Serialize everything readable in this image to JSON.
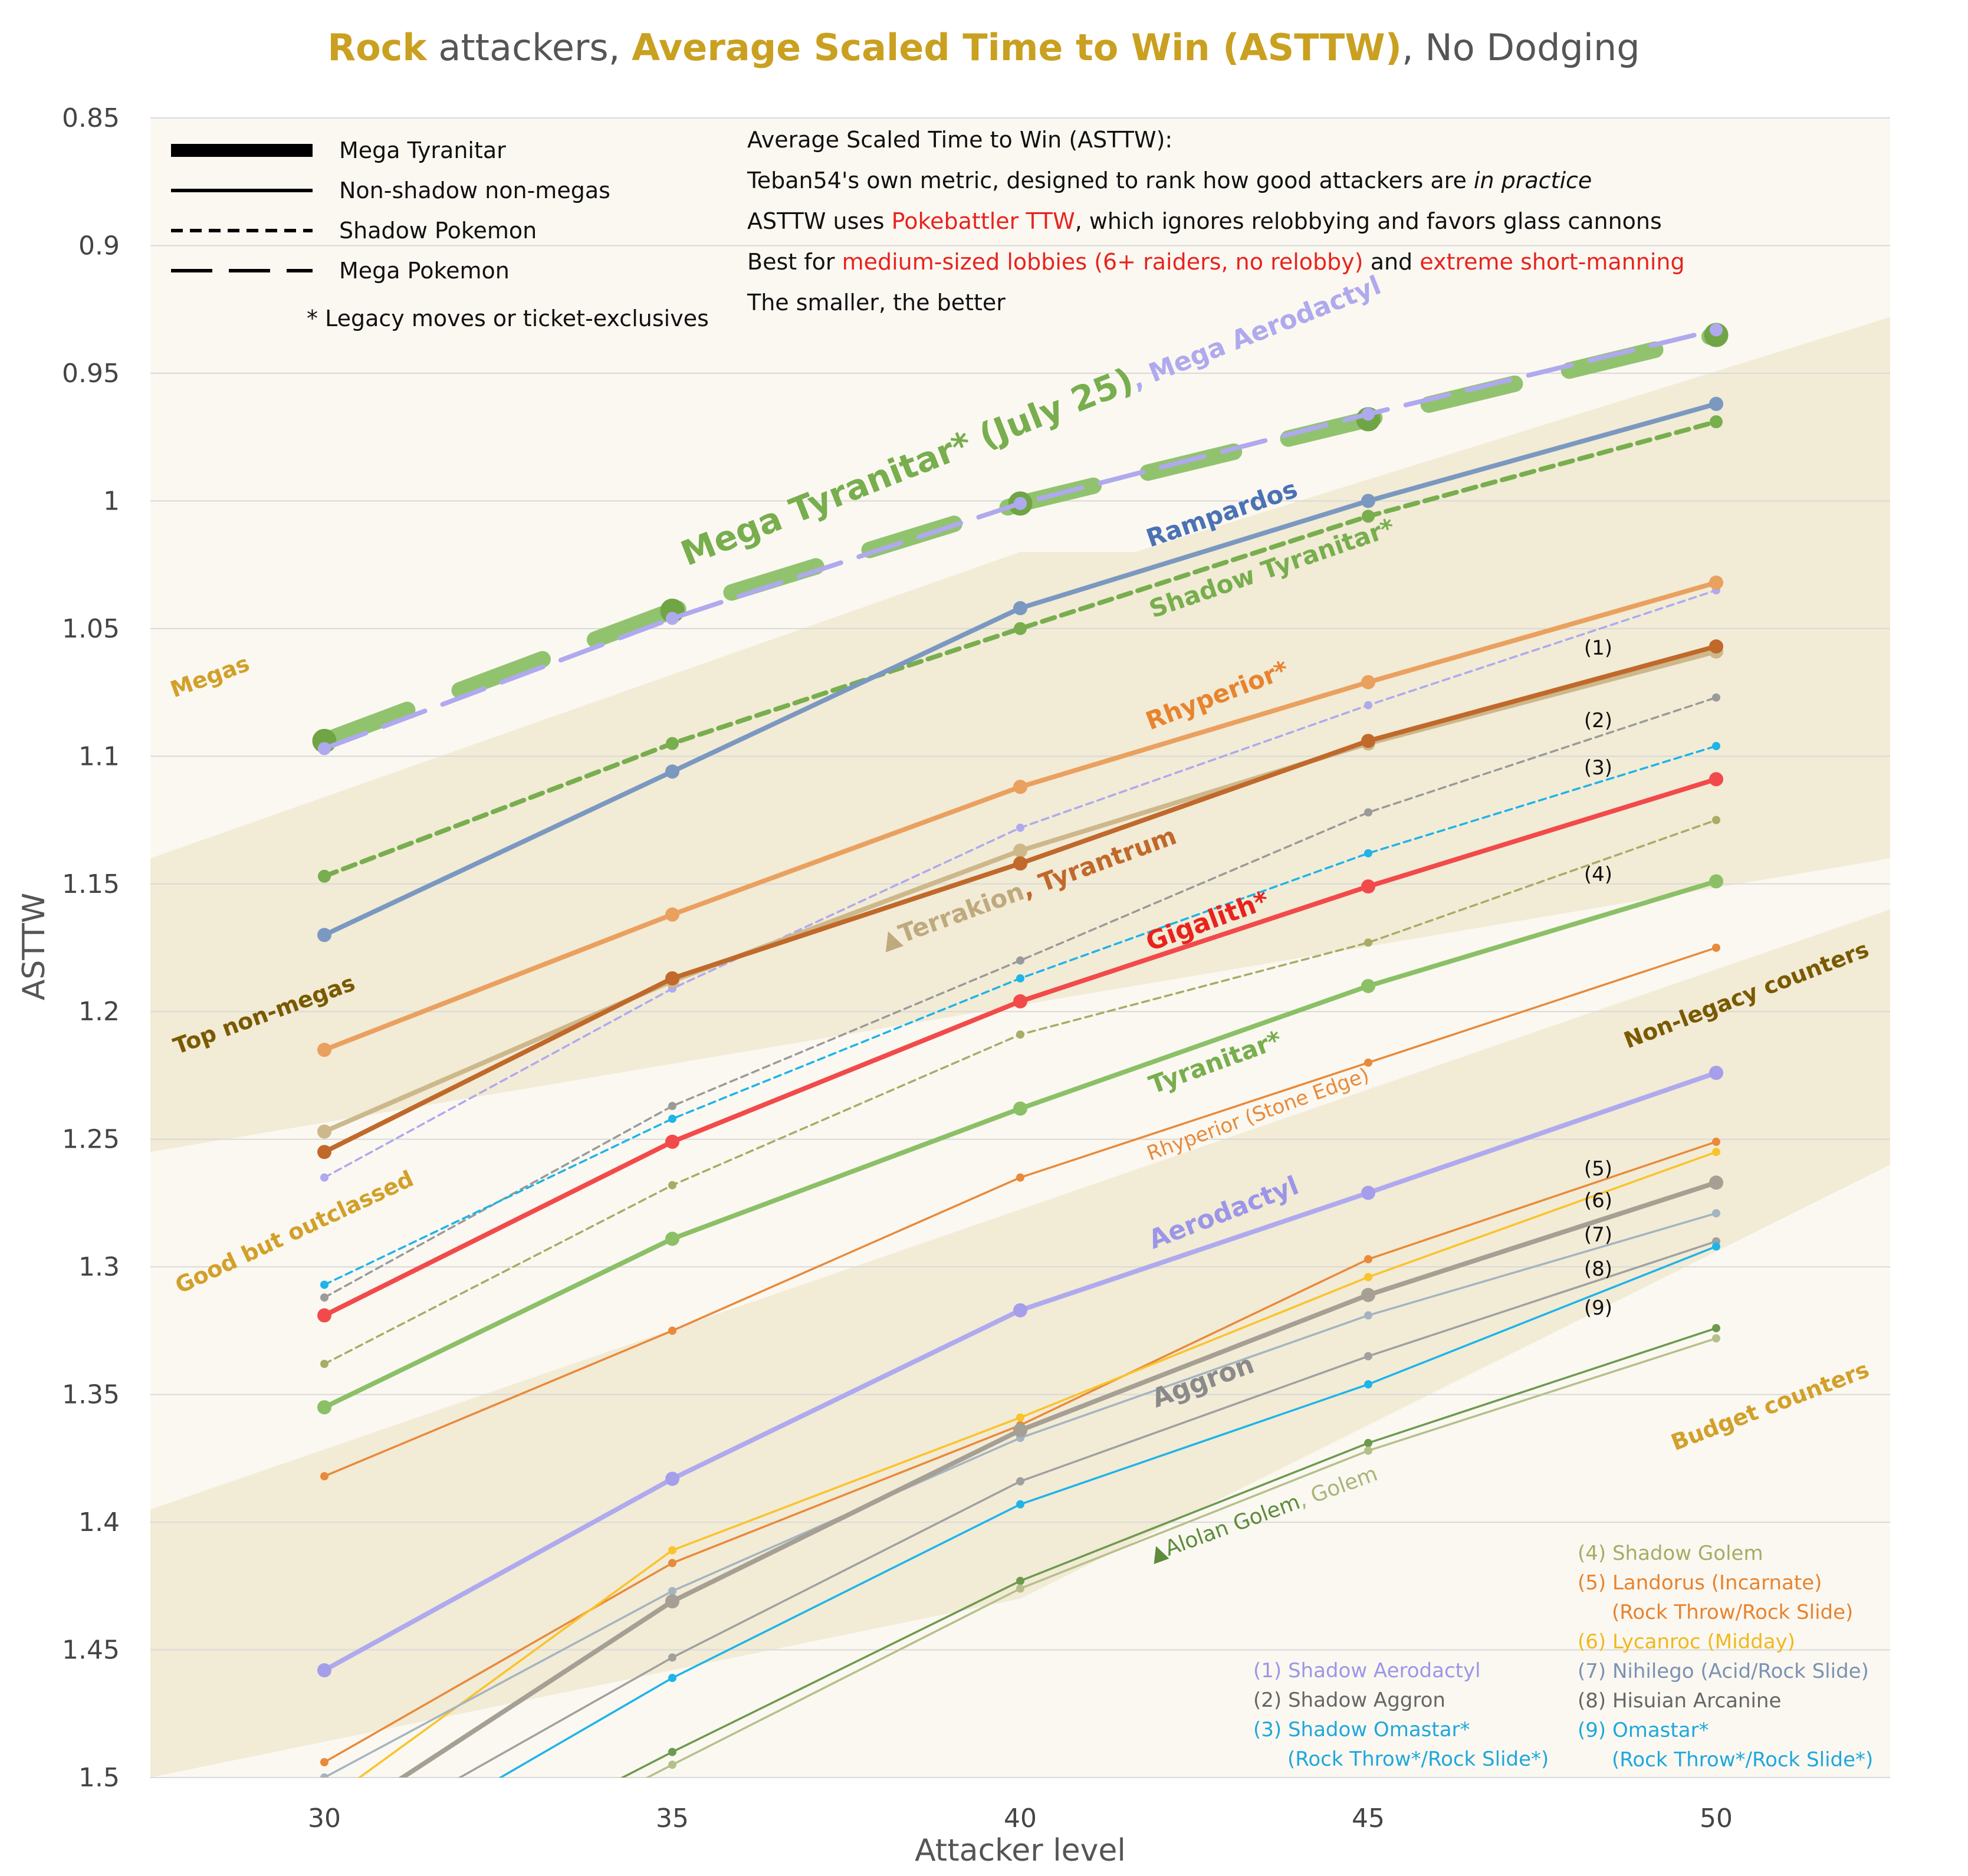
{
  "chart_data": {
    "type": "line",
    "title_parts": [
      {
        "text": "Rock",
        "color": "#C9A020",
        "bold": true
      },
      {
        "text": " attackers, ",
        "color": "#555555",
        "bold": false
      },
      {
        "text": "Average Scaled Time to Win (ASTTW)",
        "color": "#C9A020",
        "bold": true
      },
      {
        "text": ", No Dodging",
        "color": "#555555",
        "bold": false
      }
    ],
    "xlabel": "Attacker level",
    "ylabel": "ASTTW",
    "x": [
      30,
      35,
      40,
      45,
      50
    ],
    "xlim": [
      27.5,
      52.5
    ],
    "ylim": [
      0.85,
      1.5
    ],
    "y_inverted": true,
    "x_ticks": [
      "30",
      "35",
      "40",
      "45",
      "50"
    ],
    "y_ticks": [
      "0.85",
      "0.9",
      "0.95",
      "1",
      "1.05",
      "1.1",
      "1.15",
      "1.2",
      "1.25",
      "1.3",
      "1.35",
      "1.4",
      "1.45",
      "1.5"
    ],
    "grid": "horizontal",
    "tiers": [
      {
        "label": "Megas",
        "color": "#FBF8F1"
      },
      {
        "label": "Top non-megas",
        "color": "#F2EBD6"
      },
      {
        "label": "Good but outclassed",
        "color": "#FBF8F1"
      },
      {
        "label": "Non-legacy counters",
        "color": "#F2EBD6"
      },
      {
        "label": "Budget counters",
        "color": "#FBF8F1"
      }
    ],
    "legend": {
      "position": "top-left",
      "items": [
        {
          "label": "Mega Tyranitar",
          "style": "thick"
        },
        {
          "label": "Non-shadow non-megas",
          "style": "solid"
        },
        {
          "label": "Shadow Pokemon",
          "style": "dotted"
        },
        {
          "label": "Mega Pokemon",
          "style": "dashed"
        }
      ],
      "legacy_note": "*   Legacy moves or ticket-exclusives"
    },
    "annotation_lines": [
      [
        {
          "t": "Average Scaled Time to Win (ASTTW):",
          "c": "#111111"
        }
      ],
      [
        {
          "t": "Teban54's own metric, designed to rank how good attackers are ",
          "c": "#111111"
        },
        {
          "t": "in practice",
          "c": "#111111",
          "i": true
        }
      ],
      [
        {
          "t": "ASTTW uses ",
          "c": "#111111"
        },
        {
          "t": "Pokebattler TTW",
          "c": "#E8231E"
        },
        {
          "t": ", which ignores relobbying and favors glass cannons",
          "c": "#111111"
        }
      ],
      [
        {
          "t": "Best for ",
          "c": "#111111"
        },
        {
          "t": "medium-sized lobbies (6+ raiders, no relobby)",
          "c": "#E8231E"
        },
        {
          "t": " and ",
          "c": "#111111"
        },
        {
          "t": "extreme short-manning",
          "c": "#E8231E"
        }
      ],
      [
        {
          "t": "The smaller, the better",
          "c": "#111111"
        }
      ]
    ],
    "series": [
      {
        "name": "Mega Aerodactyl",
        "values": [
          1.097,
          1.046,
          1.001,
          0.966,
          0.933
        ],
        "color": "#AFA9EE",
        "style": "dashed"
      },
      {
        "name": "Mega Tyranitar",
        "values": [
          1.094,
          1.043,
          1.001,
          0.968,
          0.935
        ],
        "color": "#8BC067",
        "style": "thick"
      },
      {
        "name": "Rampardos",
        "values": [
          1.17,
          1.106,
          1.042,
          1.0,
          0.962
        ],
        "color": "#7A98C0",
        "style": "solid"
      },
      {
        "name": "Shadow Tyranitar",
        "values": [
          1.147,
          1.095,
          1.05,
          1.006,
          0.969
        ],
        "color": "#78AE4E",
        "style": "dotted"
      },
      {
        "name": "Rhyperior",
        "values": [
          1.215,
          1.162,
          1.112,
          1.071,
          1.032
        ],
        "color": "#EAA05E",
        "style": "solid"
      },
      {
        "name": "Shadow Aerodactyl",
        "values": [
          1.265,
          1.191,
          1.128,
          1.08,
          1.035
        ],
        "color": "#AFA9EE",
        "style": "dotted_thin"
      },
      {
        "name": "Terrakion",
        "values": [
          1.247,
          1.188,
          1.137,
          1.095,
          1.059
        ],
        "color": "#CDB88B",
        "style": "solid"
      },
      {
        "name": "Tyrantrum",
        "values": [
          1.255,
          1.187,
          1.142,
          1.094,
          1.057
        ],
        "color": "#C0692B",
        "style": "solid"
      },
      {
        "name": "Shadow Aggron",
        "values": [
          1.312,
          1.237,
          1.18,
          1.122,
          1.077
        ],
        "color": "#9A9A9A",
        "style": "dotted_thin"
      },
      {
        "name": "Shadow Omastar",
        "values": [
          1.307,
          1.242,
          1.187,
          1.138,
          1.096
        ],
        "color": "#1EB4E8",
        "style": "dotted_thin"
      },
      {
        "name": "Gigalith",
        "values": [
          1.319,
          1.251,
          1.196,
          1.151,
          1.109
        ],
        "color": "#F24A4A",
        "style": "solid"
      },
      {
        "name": "Shadow Golem",
        "values": [
          1.338,
          1.268,
          1.209,
          1.173,
          1.125
        ],
        "color": "#A7AC66",
        "style": "dotted_thin"
      },
      {
        "name": "Tyranitar",
        "values": [
          1.355,
          1.289,
          1.238,
          1.19,
          1.149
        ],
        "color": "#8BC067",
        "style": "solid"
      },
      {
        "name": "Rhyperior (Stone Edge)",
        "values": [
          1.382,
          1.325,
          1.265,
          1.22,
          1.175
        ],
        "color": "#E88A3A",
        "style": "thin"
      },
      {
        "name": "Aerodactyl",
        "values": [
          1.458,
          1.383,
          1.317,
          1.271,
          1.224
        ],
        "color": "#AFA9EE",
        "style": "solid"
      },
      {
        "name": "Landorus (Incarnate)",
        "values": [
          1.494,
          1.416,
          1.362,
          1.297,
          1.251
        ],
        "color": "#E88A3A",
        "style": "thin"
      },
      {
        "name": "Lycanroc (Midday)",
        "values": [
          1.51,
          1.411,
          1.359,
          1.304,
          1.255
        ],
        "color": "#FAC32A",
        "style": "thin"
      },
      {
        "name": "Nihilego",
        "values": [
          1.5,
          1.427,
          1.367,
          1.319,
          1.279
        ],
        "color": "#A4B4C0",
        "style": "thin"
      },
      {
        "name": "Aggron",
        "values": [
          1.52,
          1.431,
          1.364,
          1.311,
          1.267
        ],
        "color": "#A59F94",
        "style": "solid"
      },
      {
        "name": "Hisuian Arcanine",
        "values": [
          1.53,
          1.453,
          1.384,
          1.335,
          1.29
        ],
        "color": "#A0A0A0",
        "style": "thin"
      },
      {
        "name": "Omastar",
        "values": [
          1.54,
          1.461,
          1.393,
          1.346,
          1.292
        ],
        "color": "#1EB4E8",
        "style": "thin"
      },
      {
        "name": "Alolan Golem",
        "values": [
          1.56,
          1.49,
          1.423,
          1.369,
          1.324
        ],
        "color": "#6D9A4E",
        "style": "thin"
      },
      {
        "name": "Golem",
        "values": [
          1.565,
          1.495,
          1.426,
          1.372,
          1.328
        ],
        "color": "#B4C08A",
        "style": "thin"
      }
    ],
    "line_labels": [
      {
        "text": "Mega Tyranitar* (July 25)",
        "color": "#78AE4E",
        "size": 58
      },
      {
        "text": ", Mega Aerodactyl",
        "color": "#AFA9EE",
        "size": 44
      },
      {
        "text": "Rampardos",
        "color": "#4A72B4",
        "size": 42
      },
      {
        "text": "Shadow Tyranitar*",
        "color": "#78AE4E",
        "size": 42
      },
      {
        "text": "Rhyperior*",
        "color": "#E8832E",
        "size": 42
      },
      {
        "text": "▲Terrakion",
        "color": "#BFAA7E",
        "size": 42
      },
      {
        "text": ", Tyrantrum",
        "color": "#C0692B",
        "size": 42
      },
      {
        "text": "Gigalith*",
        "color": "#E8231E",
        "size": 44
      },
      {
        "text": "Tyranitar*",
        "color": "#78AE4E",
        "size": 42
      },
      {
        "text": "Rhyperior (Stone Edge)",
        "color": "#E88A3A",
        "size": 34
      },
      {
        "text": "Aerodactyl",
        "color": "#9C96E8",
        "size": 44
      },
      {
        "text": "Aggron",
        "color": "#8A8A8A",
        "size": 44
      },
      {
        "text": "▲Alolan Golem",
        "color": "#5C8C3C",
        "size": 36
      },
      {
        "text": ", Golem",
        "color": "#A9B57A",
        "size": 36
      },
      {
        "text": "Megas",
        "color": "#D2A02A",
        "size": 38
      },
      {
        "text": "Top non-megas",
        "color": "#7A5A00",
        "size": 38
      },
      {
        "text": "Good but outclassed",
        "color": "#D2A02A",
        "size": 38
      },
      {
        "text": "Non-legacy counters",
        "color": "#7A5A00",
        "size": 38
      },
      {
        "text": "Budget counters",
        "color": "#D2A02A",
        "size": 38
      }
    ],
    "numbered_markers": [
      "(1)",
      "(2)",
      "(3)",
      "(4)",
      "(5)",
      "(6)",
      "(7)",
      "(8)",
      "(9)"
    ],
    "key_left": [
      {
        "text": "(1) Shadow Aerodactyl",
        "color": "#9C96E8"
      },
      {
        "text": "(2) Shadow Aggron",
        "color": "#666666"
      },
      {
        "text": "(3) Shadow Omastar*",
        "color": "#1EA8DC"
      },
      {
        "text": "(Rock Throw*/Rock Slide*)",
        "color": "#1EA8DC"
      }
    ],
    "key_right": [
      {
        "text": "(4) Shadow Golem",
        "color": "#A7AC66"
      },
      {
        "text": "(5) Landorus (Incarnate)",
        "color": "#E8832E"
      },
      {
        "text": "(Rock Throw/Rock Slide)",
        "color": "#E8832E"
      },
      {
        "text": "(6) Lycanroc (Midday)",
        "color": "#F0B81E"
      },
      {
        "text": "(7) Nihilego (Acid/Rock Slide)",
        "color": "#7A92B4"
      },
      {
        "text": "(8) Hisuian Arcanine",
        "color": "#666666"
      },
      {
        "text": "(9) Omastar*",
        "color": "#1EA8DC"
      },
      {
        "text": "(Rock Throw*/Rock Slide*)",
        "color": "#1EA8DC"
      }
    ]
  }
}
